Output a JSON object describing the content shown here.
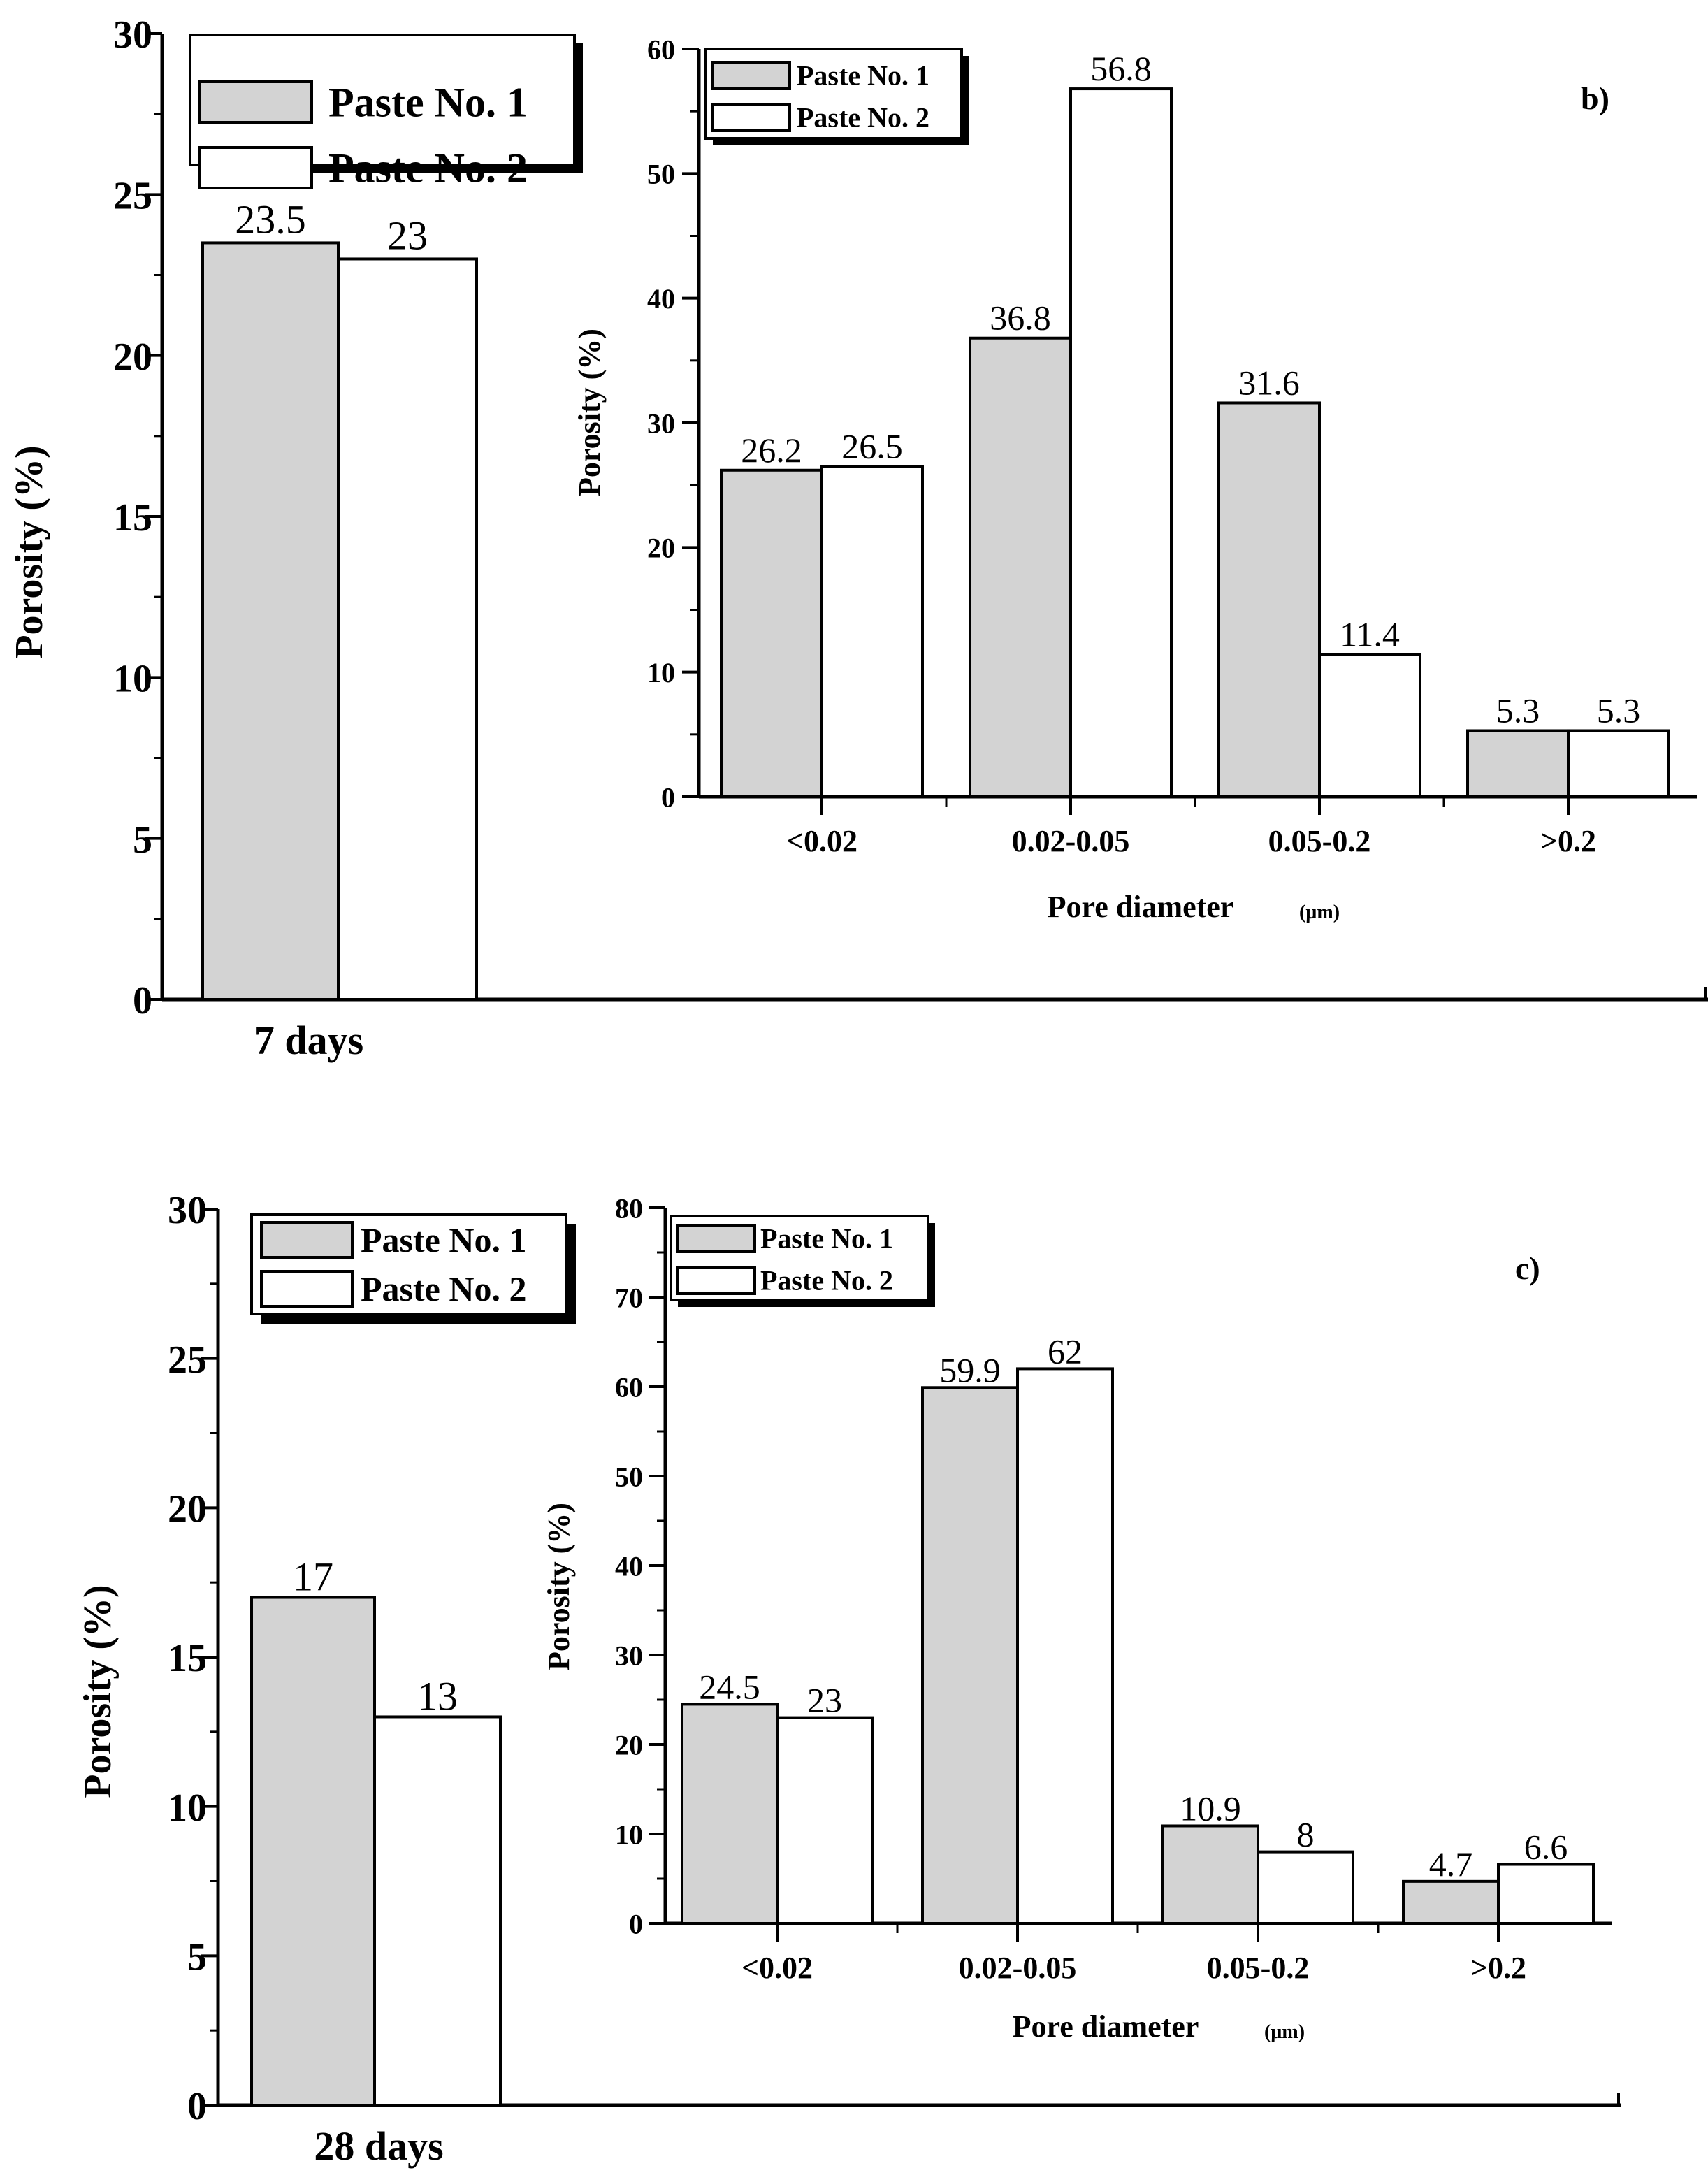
{
  "colors": {
    "paste1": "#d3d3d3",
    "paste2": "#ffffff",
    "ink": "#000000"
  },
  "series_names": [
    "Paste No. 1",
    "Paste No. 2"
  ],
  "chart_data": [
    {
      "id": "total7",
      "type": "bar",
      "title": "",
      "categories": [
        "7 days"
      ],
      "series": [
        {
          "name": "Paste No. 1",
          "values": [
            23.5
          ]
        },
        {
          "name": "Paste No. 2",
          "values": [
            23
          ]
        }
      ],
      "value_labels": [
        [
          "23.5"
        ],
        [
          "23"
        ]
      ],
      "xlabel": "",
      "ylabel": "Porosity (%)",
      "ylim": [
        0,
        30
      ],
      "yticks": [
        "0",
        "5",
        "10",
        "15",
        "20",
        "25",
        "30"
      ],
      "legend": "top-left"
    },
    {
      "id": "dist7",
      "type": "bar",
      "title": "b)",
      "categories": [
        "<0.02",
        "0.02-0.05",
        "0.05-0.2",
        ">0.2"
      ],
      "series": [
        {
          "name": "Paste No. 1",
          "values": [
            26.2,
            36.8,
            31.6,
            5.3
          ]
        },
        {
          "name": "Paste No. 2",
          "values": [
            26.5,
            56.8,
            11.4,
            5.3
          ]
        }
      ],
      "value_labels": [
        [
          "26.2",
          "36.8",
          "31.6",
          "5.3"
        ],
        [
          "26.5",
          "56.8",
          "11.4",
          "5.3"
        ]
      ],
      "xlabel": "Pore diameter",
      "xlabel_unit": "(µm)",
      "ylabel": "Porosity (%)",
      "ylim": [
        0,
        60
      ],
      "yticks": [
        "0",
        "10",
        "20",
        "30",
        "40",
        "50",
        "60"
      ],
      "legend": "top-left"
    },
    {
      "id": "total28",
      "type": "bar",
      "title": "",
      "categories": [
        "28 days"
      ],
      "series": [
        {
          "name": "Paste No. 1",
          "values": [
            17
          ]
        },
        {
          "name": "Paste No. 2",
          "values": [
            13
          ]
        }
      ],
      "value_labels": [
        [
          "17"
        ],
        [
          "13"
        ]
      ],
      "xlabel": "",
      "ylabel": "Porosity (%)",
      "ylim": [
        0,
        30
      ],
      "yticks": [
        "0",
        "5",
        "10",
        "15",
        "20",
        "25",
        "30"
      ],
      "legend": "top-left"
    },
    {
      "id": "dist28",
      "type": "bar",
      "title": "c)",
      "categories": [
        "<0.02",
        "0.02-0.05",
        "0.05-0.2",
        ">0.2"
      ],
      "series": [
        {
          "name": "Paste No. 1",
          "values": [
            24.5,
            59.9,
            10.9,
            4.7
          ]
        },
        {
          "name": "Paste No. 2",
          "values": [
            23,
            62,
            8,
            6.6
          ]
        }
      ],
      "value_labels": [
        [
          "24.5",
          "59.9",
          "10.9",
          "4.7"
        ],
        [
          "23",
          "62",
          "8",
          "6.6"
        ]
      ],
      "xlabel": "Pore diameter",
      "xlabel_unit": "(µm)",
      "ylabel": "Porosity (%)",
      "ylim": [
        0,
        80
      ],
      "yticks": [
        "0",
        "10",
        "20",
        "30",
        "40",
        "50",
        "60",
        "70",
        "80"
      ],
      "legend": "top-left"
    }
  ]
}
